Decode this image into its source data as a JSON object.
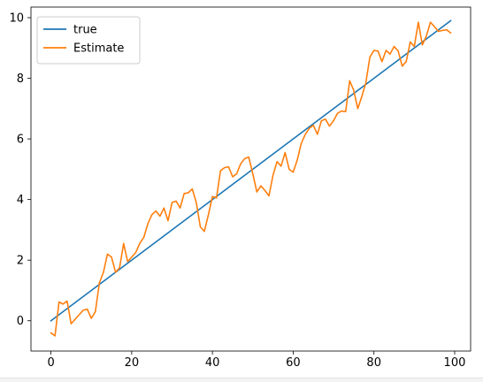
{
  "chart_data": {
    "type": "line",
    "title": "",
    "xlabel": "",
    "ylabel": "",
    "xlim": [
      -4.95,
      103.95
    ],
    "ylim": [
      -1.0,
      10.35
    ],
    "xticks": [
      0,
      20,
      40,
      60,
      80,
      100
    ],
    "xtick_labels": [
      "0",
      "20",
      "40",
      "60",
      "80",
      "100"
    ],
    "yticks": [
      0,
      2,
      4,
      6,
      8,
      10
    ],
    "ytick_labels": [
      "0",
      "2",
      "4",
      "6",
      "8",
      "10"
    ],
    "grid": false,
    "legend_position": "upper left",
    "series": [
      {
        "name": "true",
        "color": "#1f77b4",
        "x": [
          0,
          99
        ],
        "y": [
          0.0,
          9.9
        ]
      },
      {
        "name": "Estimate",
        "color": "#ff7f0e",
        "x": [
          0,
          1,
          2,
          3,
          4,
          5,
          6,
          7,
          8,
          9,
          10,
          11,
          12,
          13,
          14,
          15,
          16,
          17,
          18,
          19,
          20,
          21,
          22,
          23,
          24,
          25,
          26,
          27,
          28,
          29,
          30,
          31,
          32,
          33,
          34,
          35,
          36,
          37,
          38,
          39,
          40,
          41,
          42,
          43,
          44,
          45,
          46,
          47,
          48,
          49,
          50,
          51,
          52,
          53,
          54,
          55,
          56,
          57,
          58,
          59,
          60,
          61,
          62,
          63,
          64,
          65,
          66,
          67,
          68,
          69,
          70,
          71,
          72,
          73,
          74,
          75,
          76,
          77,
          78,
          79,
          80,
          81,
          82,
          83,
          84,
          85,
          86,
          87,
          88,
          89,
          90,
          91,
          92,
          93,
          94,
          95,
          96,
          97,
          98,
          99
        ],
        "y": [
          -0.4,
          -0.5,
          0.62,
          0.55,
          0.65,
          -0.1,
          0.05,
          0.2,
          0.35,
          0.38,
          0.08,
          0.3,
          1.25,
          1.6,
          2.2,
          2.1,
          1.6,
          1.75,
          2.55,
          1.95,
          2.1,
          2.25,
          2.55,
          2.75,
          3.2,
          3.5,
          3.62,
          3.45,
          3.72,
          3.3,
          3.9,
          3.95,
          3.72,
          4.2,
          4.22,
          4.35,
          3.9,
          3.1,
          2.95,
          3.5,
          4.1,
          4.05,
          4.95,
          5.05,
          5.08,
          4.75,
          4.85,
          5.18,
          5.35,
          5.4,
          4.85,
          4.25,
          4.45,
          4.3,
          4.12,
          4.8,
          5.25,
          5.1,
          5.55,
          5.0,
          4.9,
          5.3,
          5.85,
          6.15,
          6.35,
          6.45,
          6.15,
          6.6,
          6.65,
          6.42,
          6.6,
          6.85,
          6.92,
          6.9,
          7.92,
          7.6,
          7.0,
          7.4,
          7.85,
          8.7,
          8.92,
          8.9,
          8.55,
          8.92,
          8.8,
          9.05,
          8.9,
          8.4,
          8.55,
          9.2,
          9.05,
          9.85,
          9.1,
          9.4,
          9.85,
          9.7,
          9.55,
          9.58,
          9.6,
          9.5
        ]
      }
    ]
  }
}
